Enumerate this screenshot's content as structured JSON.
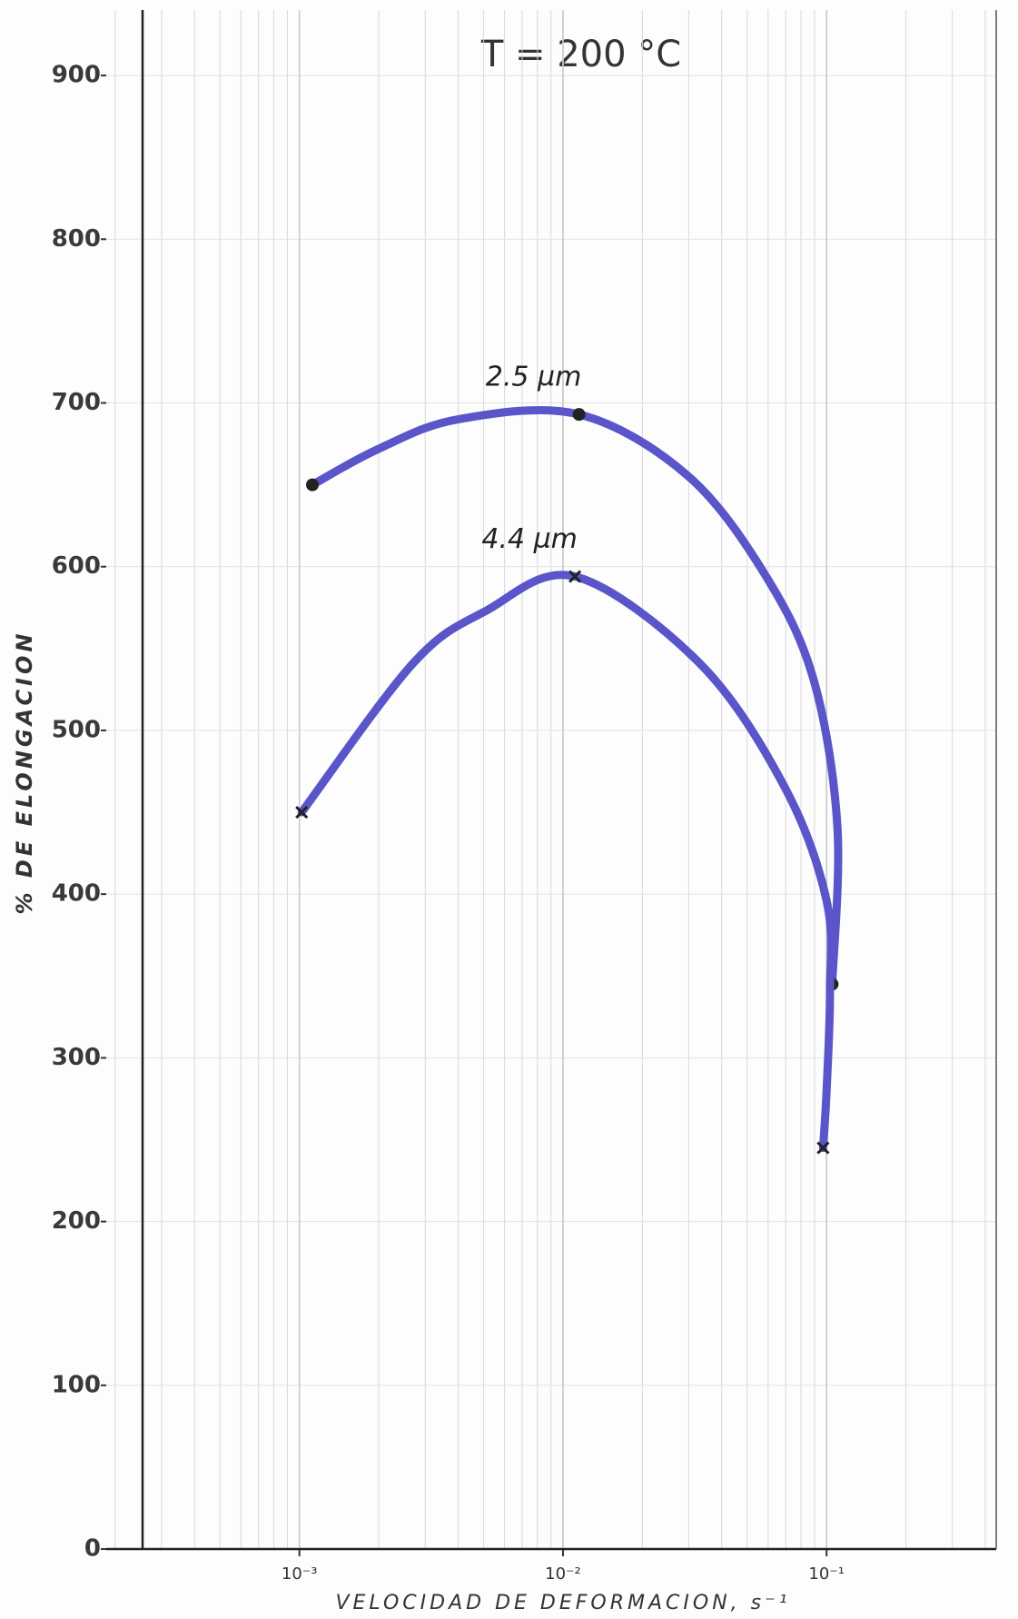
{
  "chart_data": {
    "type": "line",
    "title": "T = 200 °C",
    "x_label": "VELOCIDAD DE DEFORMACION, s⁻¹",
    "y_label": "% DE ELONGACION",
    "xlog": true,
    "grid": true,
    "xlim": [
      0.000185,
      0.44
    ],
    "ylim": [
      0,
      940
    ],
    "xticks": [
      {
        "value": 0.001,
        "label": "10⁻³"
      },
      {
        "value": 0.01,
        "label": "10⁻²"
      },
      {
        "value": 0.1,
        "label": "10⁻¹"
      }
    ],
    "yticks": [
      0,
      100,
      200,
      300,
      400,
      500,
      600,
      700,
      800,
      900
    ],
    "series": [
      {
        "name": "2.5 µm",
        "color": "#5a55c8",
        "marker": "circle",
        "x": [
          0.00112,
          0.002,
          0.004,
          0.0115,
          0.03,
          0.06,
          0.09,
          0.11,
          0.105
        ],
        "values": [
          650,
          672,
          690,
          693,
          655,
          592,
          529,
          440,
          345
        ],
        "points": {
          "x": [
            0.00112,
            0.0115,
            0.105
          ],
          "values": [
            650,
            693,
            345
          ]
        }
      },
      {
        "name": "4.4 µm",
        "color": "#5a55c8",
        "marker": "cross",
        "x": [
          0.00102,
          0.0027,
          0.0051,
          0.0111,
          0.033,
          0.069,
          0.1,
          0.103,
          0.1,
          0.097
        ],
        "values": [
          450,
          541,
          573,
          594,
          541,
          466,
          396,
          340,
          280,
          245
        ],
        "points": {
          "x": [
            0.00102,
            0.0111,
            0.097
          ],
          "values": [
            450,
            594,
            245
          ]
        }
      }
    ]
  }
}
